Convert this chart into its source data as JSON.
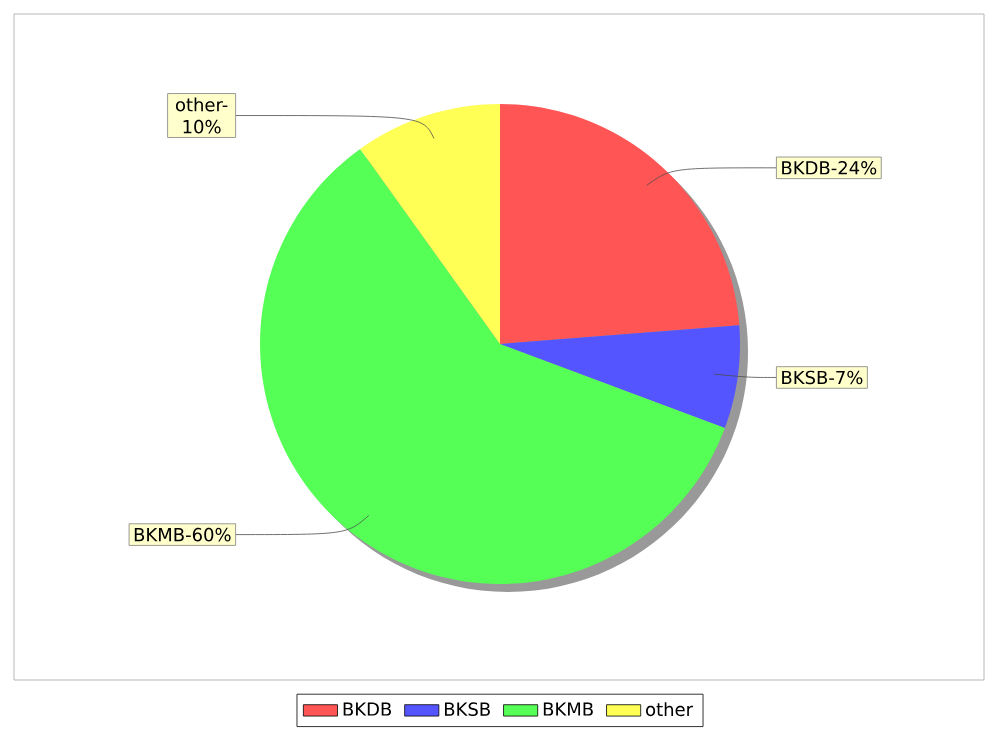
{
  "chart_data": {
    "type": "pie",
    "categories": [
      "BKDB",
      "BKSB",
      "BKMB",
      "other"
    ],
    "values": [
      24,
      7,
      60,
      10
    ],
    "colors": [
      "#ff5555",
      "#5555ff",
      "#55ff55",
      "#ffff55"
    ],
    "value_labels": [
      "BKDB-24%",
      "BKSB-7%",
      "BKMB-60%",
      "other-10%"
    ],
    "legend": "bottom"
  }
}
